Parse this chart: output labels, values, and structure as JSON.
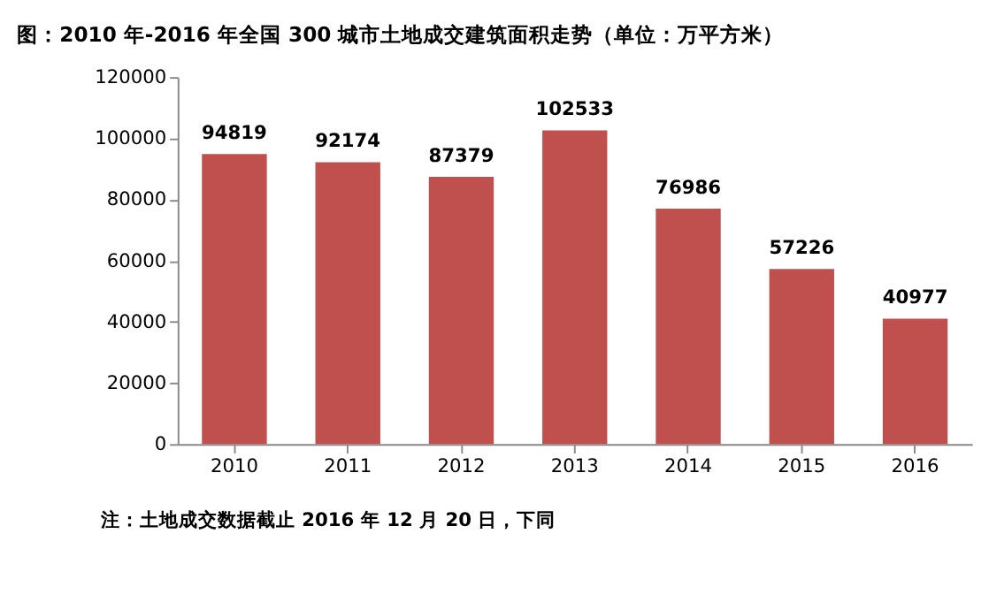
{
  "chart_data": {
    "type": "bar",
    "title": "图：2010 年-2016 年全国 300 城市土地成交建筑面积走势（单位：万平方米）",
    "categories": [
      "2010",
      "2011",
      "2012",
      "2013",
      "2014",
      "2015",
      "2016"
    ],
    "values": [
      94819,
      92174,
      87379,
      102533,
      76986,
      57226,
      40977
    ],
    "color": "#c0504d",
    "data_labels": true,
    "ylim": [
      0,
      120000
    ],
    "yticks": [
      0,
      20000,
      40000,
      60000,
      80000,
      100000,
      120000
    ],
    "grid": false,
    "annotations": [
      "注：土地成交数据截止 2016 年 12 月 20 日，下同"
    ]
  }
}
